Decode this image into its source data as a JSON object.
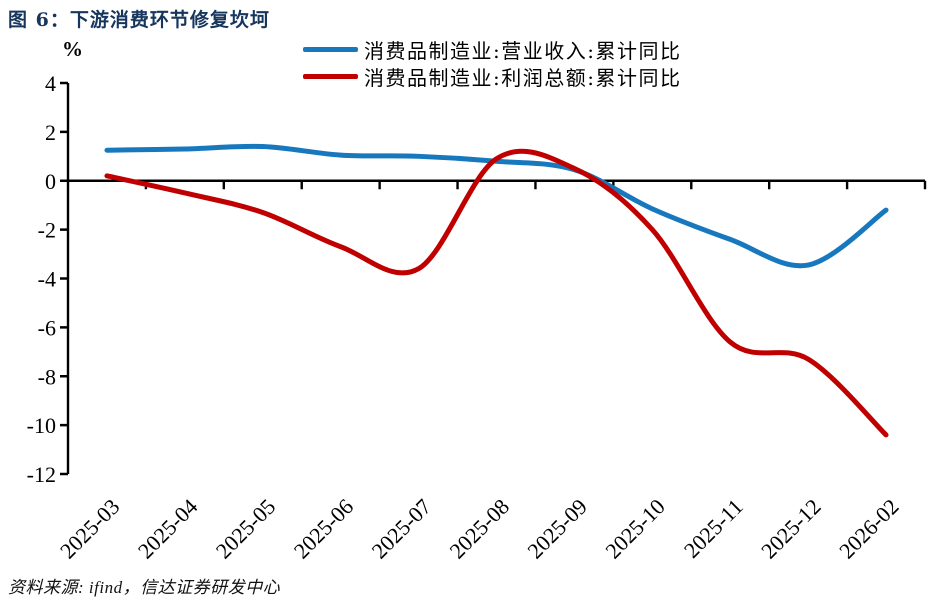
{
  "chart_data": {
    "type": "line",
    "title": "图 6：下游消费环节修复坎坷",
    "unit_label": "%",
    "source": "资料来源: ifind，信达证券研发中心",
    "categories": [
      "2025-03",
      "2025-04",
      "2025-05",
      "2025-06",
      "2025-07",
      "2025-08",
      "2025-09",
      "2025-10",
      "2025-11",
      "2025-12",
      "2026-02"
    ],
    "series": [
      {
        "name": "消费品制造业:营业收入:累计同比",
        "color": "#1878be",
        "values": [
          1.25,
          1.3,
          1.4,
          1.05,
          1.0,
          0.8,
          0.45,
          -1.15,
          -2.4,
          -3.45,
          -1.2
        ]
      },
      {
        "name": "消费品制造业:利润总额:累计同比",
        "color": "#c00000",
        "values": [
          0.2,
          -0.5,
          -1.3,
          -2.7,
          -3.6,
          0.9,
          0.5,
          -2.0,
          -6.6,
          -7.3,
          -10.4
        ]
      }
    ],
    "ylim": [
      -12,
      4
    ],
    "ytick_step": 2,
    "grid": "off",
    "legend_position": "top-center",
    "axis_color": "#000000",
    "zero_baseline": true
  }
}
